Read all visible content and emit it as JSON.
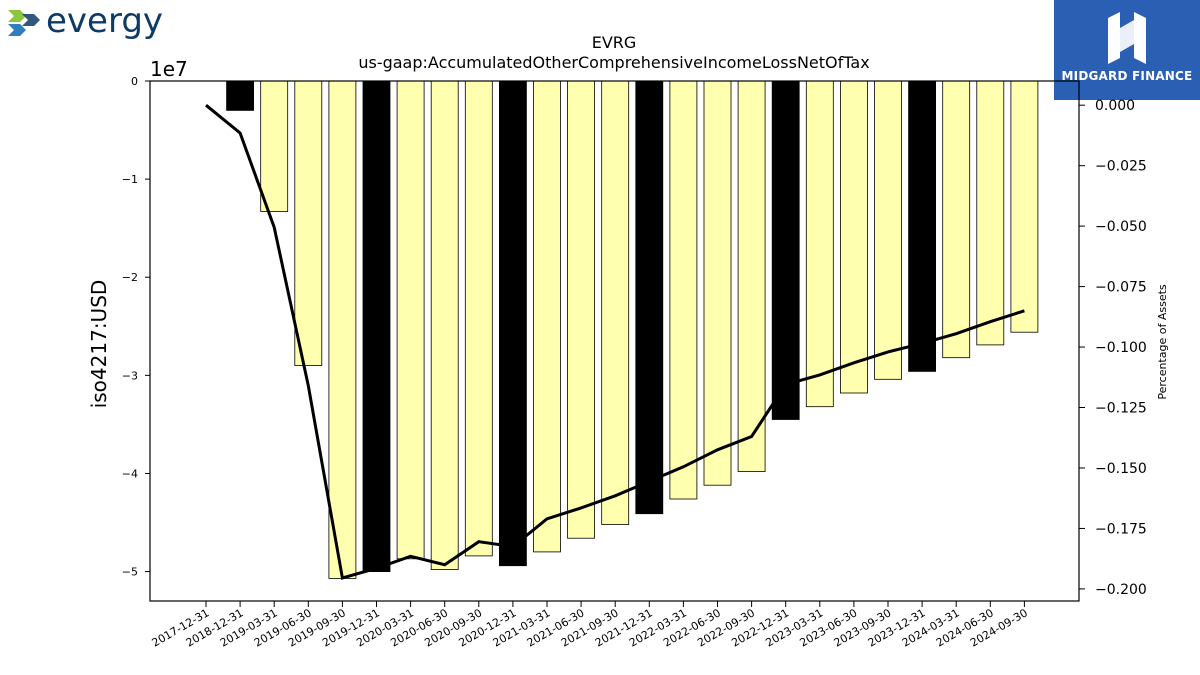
{
  "logos": {
    "left_brand": "evergy",
    "right_brand": "MIDGARD FINANCE"
  },
  "chart_data": {
    "type": "bar",
    "title": "EVRG",
    "subtitle": "us-gaap:AccumulatedOtherComprehensiveIncomeLossNetOfTax",
    "ylabel": "iso4217:USD",
    "y_scale_label": "1e7",
    "y2label": "Percentage of Assets",
    "ylim": [
      0,
      -5.3
    ],
    "y2lim": [
      0.01,
      -0.205
    ],
    "yticks": [
      0,
      -1,
      -2,
      -3,
      -4,
      -5
    ],
    "yticklabels": [
      "0",
      "−1",
      "−2",
      "−3",
      "−4",
      "−5"
    ],
    "y2ticks": [
      0.0,
      -0.025,
      -0.05,
      -0.075,
      -0.1,
      -0.125,
      -0.15,
      -0.175,
      -0.2
    ],
    "y2ticklabels": [
      "0.000",
      "−0.025",
      "−0.050",
      "−0.075",
      "−0.100",
      "−0.125",
      "−0.150",
      "−0.175",
      "−0.200"
    ],
    "categories": [
      "2017-12-31",
      "2018-12-31",
      "2019-03-31",
      "2019-06-30",
      "2019-09-30",
      "2019-12-31",
      "2020-03-31",
      "2020-06-30",
      "2020-09-30",
      "2020-12-31",
      "2021-03-31",
      "2021-06-30",
      "2021-09-30",
      "2021-12-31",
      "2022-03-31",
      "2022-06-30",
      "2022-09-30",
      "2022-12-31",
      "2023-03-31",
      "2023-06-30",
      "2023-09-30",
      "2023-12-31",
      "2024-03-31",
      "2024-06-30",
      "2024-09-30"
    ],
    "series": [
      {
        "values": [
          null,
          -0.3,
          -1.33,
          -2.9,
          -5.07,
          -5.0,
          -4.87,
          -4.98,
          -4.84,
          -4.94,
          -4.8,
          -4.66,
          -4.52,
          -4.41,
          -4.26,
          -4.12,
          -3.98,
          -3.45,
          -3.32,
          -3.18,
          -3.04,
          -2.96,
          -2.82,
          -2.69,
          -2.56
        ],
        "annual": [
          false,
          true,
          false,
          false,
          false,
          true,
          false,
          false,
          false,
          true,
          false,
          false,
          false,
          true,
          false,
          false,
          false,
          true,
          false,
          false,
          false,
          true,
          false,
          false,
          false
        ],
        "colors": {
          "annual": "#000000",
          "quarterly": "#ffffb0"
        }
      },
      {
        "type": "line",
        "values": [
          0.0,
          -0.0115,
          -0.0505,
          -0.116,
          -0.1955,
          -0.1915,
          -0.1865,
          -0.19,
          -0.1805,
          -0.1825,
          -0.171,
          -0.1665,
          -0.1615,
          -0.1555,
          -0.1495,
          -0.1425,
          -0.137,
          -0.1155,
          -0.1115,
          -0.1065,
          -0.102,
          -0.0985,
          -0.0945,
          -0.0895,
          -0.085
        ],
        "color": "#000000"
      }
    ],
    "grid": false,
    "legend": "none"
  }
}
